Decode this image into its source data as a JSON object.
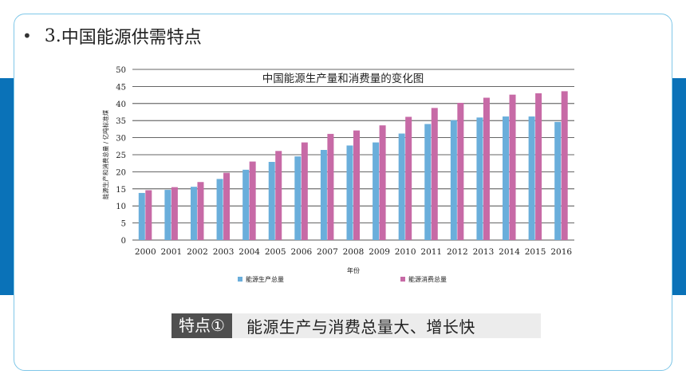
{
  "slide": {
    "heading_number": "3.",
    "heading_text": "中国能源供需特点",
    "feature_tag": "特点①",
    "feature_text": "能源生产与消费总量大、增长快"
  },
  "colors": {
    "accent_blue": "#0a72b8",
    "border": "#7fc7e8",
    "series_production": "#6aaedb",
    "series_consumption": "#c76aa6"
  },
  "chart_data": {
    "type": "bar",
    "title": "中国能源生产量和消费量的变化图",
    "xlabel": "年份",
    "ylabel": "能源生产和消费总量 / 亿吨标准煤",
    "ylim": [
      0,
      50
    ],
    "yticks": [
      0,
      5,
      10,
      15,
      20,
      25,
      30,
      35,
      40,
      45,
      50
    ],
    "grid": true,
    "legend_position": "bottom",
    "categories": [
      "2000",
      "2001",
      "2002",
      "2003",
      "2004",
      "2005",
      "2006",
      "2007",
      "2008",
      "2009",
      "2010",
      "2011",
      "2012",
      "2013",
      "2014",
      "2015",
      "2016"
    ],
    "series": [
      {
        "name": "能源生产总量",
        "values": [
          13.8,
          14.7,
          15.6,
          17.9,
          20.6,
          22.9,
          24.5,
          26.4,
          27.7,
          28.6,
          31.2,
          34.0,
          35.1,
          35.9,
          36.2,
          36.2,
          34.6
        ]
      },
      {
        "name": "能源消费总量",
        "values": [
          14.6,
          15.5,
          17.0,
          19.7,
          23.0,
          26.1,
          28.6,
          31.1,
          32.1,
          33.6,
          36.1,
          38.7,
          40.2,
          41.7,
          42.6,
          43.0,
          43.6
        ]
      }
    ]
  }
}
